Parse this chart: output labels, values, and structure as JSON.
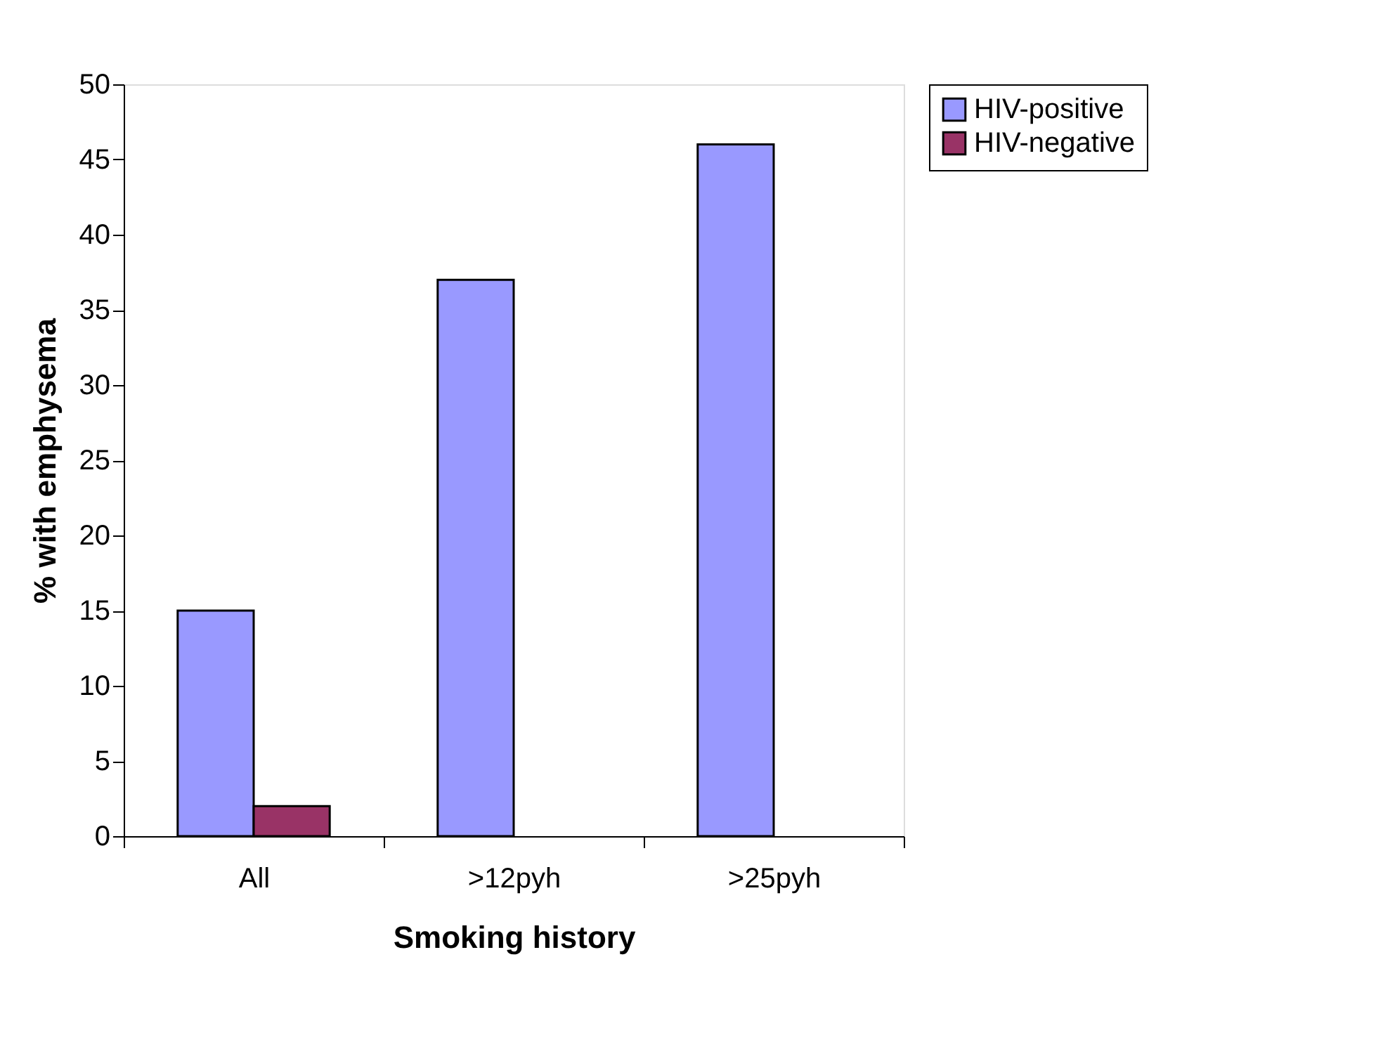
{
  "chart_data": {
    "type": "bar",
    "xlabel": "Smoking history",
    "ylabel": "% with emphysema",
    "categories": [
      "All",
      ">12pyh",
      ">25pyh"
    ],
    "series": [
      {
        "name": "HIV-positive",
        "color": "#9999ff",
        "values": [
          15,
          37,
          46
        ]
      },
      {
        "name": "HIV-negative",
        "color": "#993366",
        "values": [
          2,
          null,
          null
        ]
      }
    ],
    "ylim": [
      0,
      50
    ],
    "yticks": [
      0,
      5,
      10,
      15,
      20,
      25,
      30,
      35,
      40,
      45,
      50
    ],
    "grid": false,
    "legend": "right"
  }
}
